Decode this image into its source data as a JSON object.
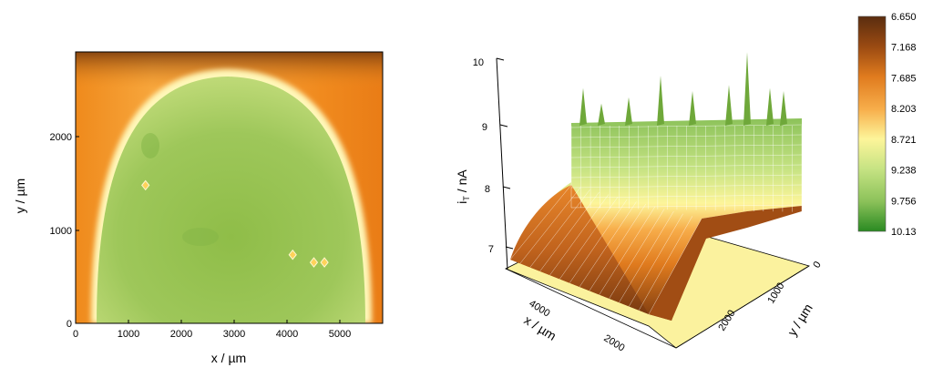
{
  "chart_data": [
    {
      "type": "heatmap",
      "xlabel": "x / µm",
      "ylabel": "y / µm",
      "xlim": [
        0,
        5800
      ],
      "ylim": [
        0,
        2850
      ],
      "x_ticks": [
        "0",
        "1000",
        "2000",
        "3000",
        "4000",
        "5000"
      ],
      "y_ticks": [
        "0",
        "1000",
        "2000"
      ],
      "regions": [
        {
          "name": "inner",
          "value": 9.0
        },
        {
          "name": "outer",
          "value": 7.4
        }
      ],
      "markers": [
        {
          "x": 1320,
          "y": 1450
        },
        {
          "x": 4100,
          "y": 720
        },
        {
          "x": 4500,
          "y": 640
        },
        {
          "x": 4700,
          "y": 640
        }
      ]
    },
    {
      "type": "surface",
      "zlabel": "iT / nA",
      "xlabel": "x / µm",
      "ylabel": "y / µm",
      "zlim": [
        6.6,
        10
      ],
      "z_ticks": [
        "7",
        "8",
        "9",
        "10"
      ],
      "x_ticks": [
        "4000",
        "2000"
      ],
      "y_ticks": [
        "0",
        "1000",
        "2000"
      ],
      "surface": {
        "low": 6.65,
        "plateau": 8.9,
        "spike_max": 10.13
      }
    }
  ],
  "colorbar": {
    "labels": [
      "6.650",
      "7.168",
      "7.685",
      "8.203",
      "8.721",
      "9.238",
      "9.756",
      "10.13"
    ],
    "stops": [
      "#5a2d0f",
      "#9a4a12",
      "#e07b1e",
      "#f7ad4a",
      "#fdf59a",
      "#c6e383",
      "#8cc25a",
      "#2a8a22"
    ]
  },
  "labels": {
    "hm_x": "x / ",
    "hm_xunit": "µm",
    "hm_y": "y / ",
    "hm_yunit": "µm",
    "s_z_main": "i",
    "s_z_sub": "T",
    "s_z_rest": " / nA",
    "s_x": "x / µm",
    "s_y": "y / µm"
  },
  "heatmap_ticks": {
    "x0": "0",
    "x1": "1000",
    "x2": "2000",
    "x3": "3000",
    "x4": "4000",
    "x5": "5000",
    "y0": "0",
    "y1": "1000",
    "y2": "2000"
  },
  "surface_ticks": {
    "z7": "7",
    "z8": "8",
    "z9": "9",
    "z10": "10",
    "x4000": "4000",
    "x2000": "2000",
    "y0": "0",
    "y1000": "1000",
    "y2000": "2000"
  }
}
